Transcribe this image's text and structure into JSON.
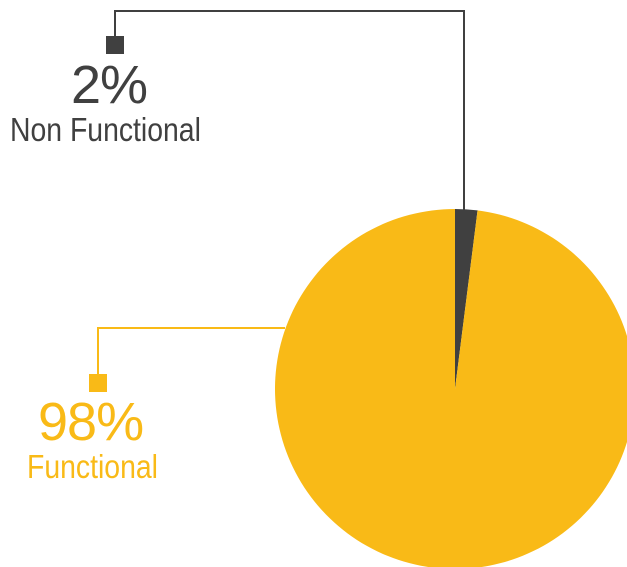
{
  "chart_data": {
    "type": "pie",
    "title": "",
    "slices": [
      {
        "name": "Non Functional",
        "value_label": "2%",
        "value": 2,
        "color": "#404040"
      },
      {
        "name": "Functional",
        "value_label": "98%",
        "value": 98,
        "color": "#F9BA17"
      }
    ],
    "legend": "callouts"
  },
  "labels": {
    "non_functional_value": "2%",
    "non_functional_name": "Non Functional",
    "functional_value": "98%",
    "functional_name": "Functional"
  },
  "colors": {
    "non_functional": "#404040",
    "functional": "#F9BA17",
    "background": "#FFFFFF"
  }
}
